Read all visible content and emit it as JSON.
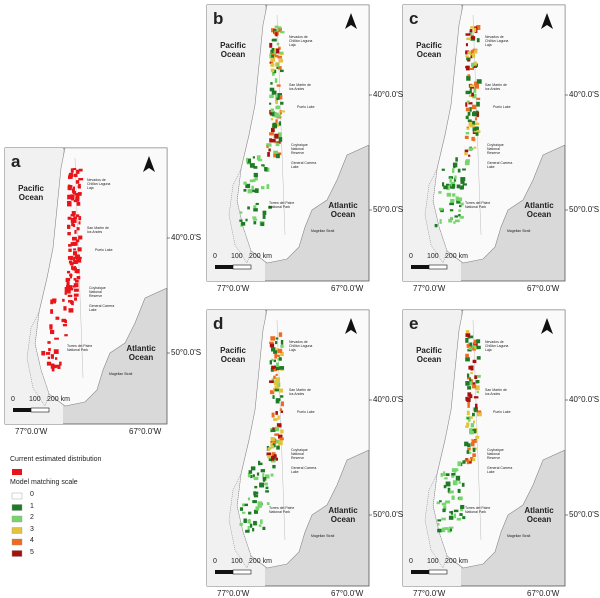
{
  "panels": [
    {
      "label": "a",
      "type": "current"
    },
    {
      "label": "b",
      "type": "model"
    },
    {
      "label": "c",
      "type": "model"
    },
    {
      "label": "d",
      "type": "model"
    },
    {
      "label": "e",
      "type": "model"
    }
  ],
  "map_labels": {
    "pacific": "Pacific Ocean",
    "atlantic": "Atlantic Ocean",
    "lat": [
      "40°0.0'S",
      "50°0.0'S"
    ],
    "lon": [
      "77°0.0'W",
      "67°0.0'W"
    ],
    "scale": [
      "0",
      "100",
      "200 km"
    ],
    "places": [
      "Nevados de Chillán Laguna Laja",
      "San Martín de los Andes",
      "Puelo Lake",
      "Coyhaique National Reserve",
      "General Carrera Lake",
      "Torres del Paine National Park",
      "Magellan Strait"
    ]
  },
  "legend": {
    "current_title": "Current estimated distribution",
    "current_color": "#e8141a",
    "scale_title": "Model matching scale",
    "items": [
      {
        "label": "0",
        "color": "#ffffff"
      },
      {
        "label": "1",
        "color": "#1d7a25"
      },
      {
        "label": "2",
        "color": "#74d66a"
      },
      {
        "label": "3",
        "color": "#e3c33c"
      },
      {
        "label": "4",
        "color": "#ee6b1f"
      },
      {
        "label": "5",
        "color": "#a8100f"
      }
    ]
  }
}
